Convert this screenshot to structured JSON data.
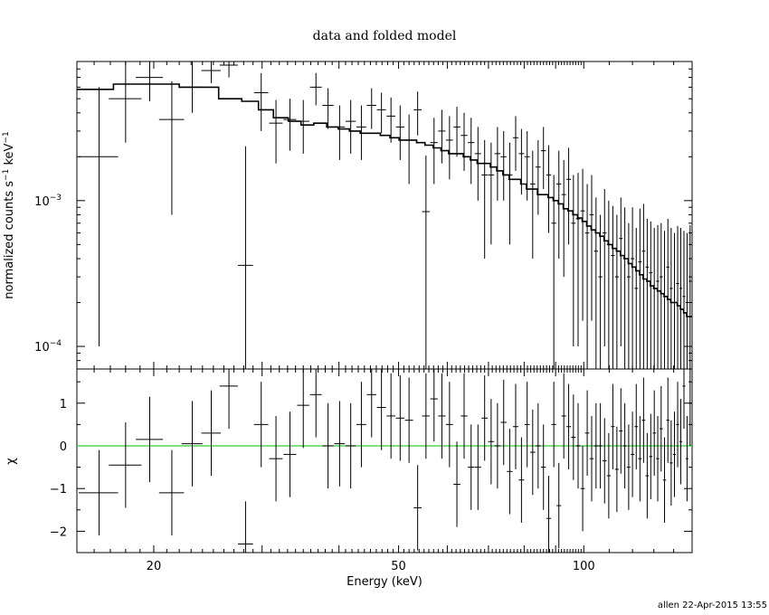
{
  "chart_data": {
    "type": "scatter",
    "title": "data and folded model",
    "xlabel": "Energy (keV)",
    "x_scale": "log",
    "xlim": [
      15,
      150
    ],
    "x_ticks": [
      {
        "value": 20,
        "label": "20"
      },
      {
        "value": 50,
        "label": "50"
      },
      {
        "value": 100,
        "label": "100"
      }
    ],
    "footer": "allen 22-Apr-2015 13:55",
    "top": {
      "ylabel_text": "normalized counts s",
      "ylabel_sup1": "−1",
      "ylabel_mid": " keV",
      "ylabel_sup2": "−1",
      "y_scale": "log",
      "ylim": [
        7e-05,
        0.009
      ],
      "y_ticks": [
        {
          "value": 0.001,
          "label_base": "10",
          "label_exp": "−3"
        },
        {
          "value": 0.0001,
          "label_base": "10",
          "label_exp": "−4"
        }
      ],
      "series": [
        {
          "x": [
            16.3,
            18.0,
            19.7,
            21.4,
            23.1,
            24.8,
            26.5,
            28.2,
            29.9,
            31.6,
            33.3,
            35.0,
            36.7,
            38.4,
            40.1,
            41.8,
            43.5,
            45.2,
            46.9,
            48.6,
            50.3,
            52.0,
            53.7,
            55.4,
            57.1,
            58.8,
            60.5,
            62.2,
            63.9,
            65.6,
            67.3,
            69.0,
            70.7,
            72.4,
            74.1,
            75.8,
            77.5,
            79.2,
            80.9,
            82.6,
            84.3,
            86.0,
            87.7,
            89.4,
            91.1,
            92.8,
            94.5,
            96.2,
            97.9,
            99.6,
            101.3,
            103.0,
            104.7,
            106.4,
            108.1,
            109.8,
            111.5,
            113.2,
            114.9,
            116.6,
            118.3,
            120.0,
            121.7,
            123.4,
            125.1,
            126.8,
            128.5,
            130.2,
            131.9,
            133.6,
            135.3,
            137.0,
            138.7,
            140.4,
            142.1,
            143.8,
            145.5,
            147.2,
            148.9
          ],
          "xerr": [
            1.2,
            1.1,
            1.0,
            1.0,
            0.9,
            0.9,
            0.9,
            0.8,
            0.8,
            0.8,
            0.8,
            0.8,
            0.8,
            0.8,
            0.8,
            0.8,
            0.8,
            0.8,
            0.8,
            0.8,
            0.8,
            0.8,
            0.8,
            0.8,
            0.8,
            0.8,
            0.8,
            0.8,
            0.8,
            0.8,
            0.8,
            0.8,
            0.8,
            0.8,
            0.8,
            0.8,
            0.8,
            0.8,
            0.8,
            0.8,
            0.8,
            0.8,
            0.8,
            0.8,
            0.8,
            0.8,
            0.8,
            0.8,
            0.8,
            0.8,
            0.8,
            0.8,
            0.8,
            0.8,
            0.8,
            0.8,
            0.8,
            0.8,
            0.8,
            0.8,
            0.8,
            0.8,
            0.8,
            0.8,
            0.8,
            0.8,
            0.8,
            0.8,
            0.8,
            0.8,
            0.8,
            0.8,
            0.8,
            0.8,
            0.8,
            0.8,
            0.8,
            0.8,
            0.8
          ],
          "y": [
            0.002,
            0.005,
            0.007,
            0.0036,
            0.006,
            0.0078,
            0.0085,
            0.00036,
            0.0055,
            0.0034,
            0.0036,
            0.0035,
            0.006,
            0.0045,
            0.0032,
            0.0035,
            0.0032,
            0.0045,
            0.0042,
            0.0038,
            0.0032,
            0.0026,
            0.0042,
            0.00084,
            0.0025,
            0.003,
            0.0026,
            0.0032,
            0.0028,
            0.0025,
            0.0021,
            0.0015,
            0.0015,
            0.0021,
            0.002,
            0.0015,
            0.0027,
            0.0021,
            0.002,
            0.0013,
            0.0017,
            0.0022,
            0.0015,
            0.0007,
            0.0013,
            0.0011,
            0.0014,
            0.0007,
            0.00075,
            0.00085,
            0.0006,
            0.0008,
            0.00045,
            0.0003,
            0.0006,
            0.0005,
            0.00042,
            0.0003,
            0.00055,
            0.0004,
            0.0003,
            0.0004,
            0.00025,
            0.00038,
            0.00045,
            0.00035,
            0.00032,
            0.00025,
            0.00028,
            0.0003,
            0.00022,
            0.00035,
            0.00025,
            0.0002,
            0.00027,
            0.00025,
            0.00022,
            0.0002,
            0.00028
          ],
          "yerr_lo": [
            0.0019,
            0.0025,
            0.0022,
            0.0028,
            0.002,
            0.0014,
            0.0015,
            0.00036,
            0.0025,
            0.0016,
            0.0014,
            0.0014,
            0.0015,
            0.0014,
            0.0013,
            0.0014,
            0.0013,
            0.0014,
            0.0013,
            0.0013,
            0.0013,
            0.0013,
            0.0014,
            0.00084,
            0.0012,
            0.0012,
            0.0012,
            0.0012,
            0.0012,
            0.0012,
            0.0011,
            0.0011,
            0.001,
            0.0011,
            0.001,
            0.001,
            0.0011,
            0.001,
            0.001,
            0.0009,
            0.0009,
            0.001,
            0.0009,
            0.0007,
            0.0009,
            0.0008,
            0.0009,
            0.0006,
            0.00065,
            0.0007,
            0.00055,
            0.00065,
            0.0004,
            0.00028,
            0.0005,
            0.00045,
            0.00038,
            0.00028,
            0.00045,
            0.00035,
            0.00028,
            0.00035,
            0.00023,
            0.00032,
            0.00038,
            0.0003,
            0.00028,
            0.00023,
            0.00025,
            0.00026,
            0.0002,
            0.0003,
            0.00022,
            0.00018,
            0.00023,
            0.00022,
            0.0002,
            0.00018,
            0.00023
          ],
          "yerr_hi": [
            0.004,
            0.004,
            0.003,
            0.003,
            0.003,
            0.002,
            0.002,
            0.002,
            0.002,
            0.0015,
            0.0014,
            0.0014,
            0.0015,
            0.0014,
            0.0013,
            0.0014,
            0.0013,
            0.0014,
            0.0013,
            0.0013,
            0.0013,
            0.0013,
            0.0014,
            0.0012,
            0.0012,
            0.0012,
            0.0012,
            0.0012,
            0.0012,
            0.0012,
            0.0011,
            0.0011,
            0.001,
            0.0011,
            0.001,
            0.001,
            0.0011,
            0.001,
            0.001,
            0.0009,
            0.0009,
            0.001,
            0.0009,
            0.0008,
            0.0009,
            0.0008,
            0.0009,
            0.0008,
            0.0008,
            0.0008,
            0.0007,
            0.0007,
            0.0006,
            0.0005,
            0.0006,
            0.0005,
            0.0005,
            0.0005,
            0.0005,
            0.0005,
            0.0004,
            0.0005,
            0.0004,
            0.0005,
            0.0005,
            0.0004,
            0.0004,
            0.0004,
            0.0004,
            0.0004,
            0.0004,
            0.0004,
            0.0004,
            0.0004,
            0.0004,
            0.0004,
            0.0004,
            0.0004,
            0.0004
          ]
        }
      ],
      "model_step": {
        "edges": [
          15,
          17.2,
          22,
          25.5,
          27.8,
          29.6,
          31.3,
          33.1,
          34.7,
          36.4,
          38.2,
          39.9,
          41.6,
          43.3,
          45.0,
          46.7,
          48.4,
          50.1,
          51.8,
          53.5,
          55.2,
          56.9,
          58.6,
          60.3,
          62.0,
          63.7,
          65.4,
          67.1,
          68.8,
          70.5,
          72.2,
          73.9,
          75.6,
          77.3,
          79.0,
          80.7,
          82.4,
          84.1,
          85.8,
          87.5,
          89.2,
          90.9,
          92.6,
          94.3,
          96.0,
          97.7,
          99.4,
          101.1,
          102.8,
          104.5,
          106.2,
          107.9,
          109.6,
          111.3,
          113.0,
          114.7,
          116.4,
          118.1,
          119.8,
          121.5,
          123.2,
          124.9,
          126.6,
          128.3,
          130.0,
          131.7,
          133.4,
          135.1,
          136.8,
          138.5,
          140.2,
          141.9,
          143.6,
          145.3,
          147.0,
          148.7,
          150
        ],
        "values": [
          0.0058,
          0.0063,
          0.006,
          0.005,
          0.0048,
          0.0042,
          0.0037,
          0.0035,
          0.0033,
          0.0034,
          0.0032,
          0.0031,
          0.003,
          0.0029,
          0.0029,
          0.0028,
          0.0027,
          0.0026,
          0.0026,
          0.0025,
          0.0024,
          0.0023,
          0.0022,
          0.0021,
          0.0021,
          0.002,
          0.0019,
          0.0018,
          0.0018,
          0.0017,
          0.0016,
          0.0015,
          0.0014,
          0.0014,
          0.0013,
          0.0012,
          0.0012,
          0.0011,
          0.0011,
          0.00105,
          0.001,
          0.00095,
          0.00088,
          0.00085,
          0.0008,
          0.00076,
          0.00072,
          0.00067,
          0.00063,
          0.0006,
          0.00057,
          0.00053,
          0.0005,
          0.00047,
          0.00045,
          0.00042,
          0.0004,
          0.00037,
          0.00035,
          0.00033,
          0.00031,
          0.00029,
          0.00028,
          0.00026,
          0.00025,
          0.00024,
          0.00023,
          0.00022,
          0.00021,
          0.0002,
          0.0002,
          0.00019,
          0.00018,
          0.00017,
          0.00016,
          0.00016
        ]
      }
    },
    "bottom": {
      "ylabel": "χ",
      "ylim": [
        -2.5,
        1.8
      ],
      "y_ticks": [
        {
          "value": 1,
          "label": "1"
        },
        {
          "value": 0,
          "label": "0"
        },
        {
          "value": -1,
          "label": "−1"
        },
        {
          "value": -2,
          "label": "−2"
        }
      ],
      "zero_line_color": "#33cc33",
      "series": [
        {
          "x": [
            16.3,
            18.0,
            19.7,
            21.4,
            23.1,
            24.8,
            26.5,
            28.2,
            29.9,
            31.6,
            33.3,
            35.0,
            36.7,
            38.4,
            40.1,
            41.8,
            43.5,
            45.2,
            46.9,
            48.6,
            50.3,
            52.0,
            53.7,
            55.4,
            57.1,
            58.8,
            60.5,
            62.2,
            63.9,
            65.6,
            67.3,
            69.0,
            70.7,
            72.4,
            74.1,
            75.8,
            77.5,
            79.2,
            80.9,
            82.6,
            84.3,
            86.0,
            87.7,
            89.4,
            91.1,
            92.8,
            94.5,
            96.2,
            97.9,
            99.6,
            101.3,
            103.0,
            104.7,
            106.4,
            108.1,
            109.8,
            111.5,
            113.2,
            114.9,
            116.6,
            118.3,
            120.0,
            121.7,
            123.4,
            125.1,
            126.8,
            128.5,
            130.2,
            131.9,
            133.6,
            135.3,
            137.0,
            138.7,
            140.4,
            142.1,
            143.8,
            145.5,
            147.2,
            148.9
          ],
          "xerr": [
            1.2,
            1.1,
            1.0,
            1.0,
            0.9,
            0.9,
            0.9,
            0.8,
            0.8,
            0.8,
            0.8,
            0.8,
            0.8,
            0.8,
            0.8,
            0.8,
            0.8,
            0.8,
            0.8,
            0.8,
            0.8,
            0.8,
            0.8,
            0.8,
            0.8,
            0.8,
            0.8,
            0.8,
            0.8,
            0.8,
            0.8,
            0.8,
            0.8,
            0.8,
            0.8,
            0.8,
            0.8,
            0.8,
            0.8,
            0.8,
            0.8,
            0.8,
            0.8,
            0.8,
            0.8,
            0.8,
            0.8,
            0.8,
            0.8,
            0.8,
            0.8,
            0.8,
            0.8,
            0.8,
            0.8,
            0.8,
            0.8,
            0.8,
            0.8,
            0.8,
            0.8,
            0.8,
            0.8,
            0.8,
            0.8,
            0.8,
            0.8,
            0.8,
            0.8,
            0.8,
            0.8,
            0.8,
            0.8,
            0.8,
            0.8,
            0.8,
            0.8,
            0.8,
            0.8
          ],
          "y": [
            -1.1,
            -0.45,
            0.15,
            -1.1,
            0.05,
            0.3,
            1.4,
            -2.3,
            0.5,
            -0.3,
            -0.2,
            0.95,
            1.2,
            0.0,
            0.05,
            0.0,
            0.5,
            1.2,
            0.9,
            0.7,
            0.65,
            0.6,
            -1.45,
            0.7,
            1.1,
            0.7,
            0.5,
            -0.9,
            0.7,
            -0.5,
            -0.5,
            0.65,
            0.1,
            0.0,
            0.55,
            -0.6,
            0.45,
            -0.8,
            0.5,
            -0.15,
            0.0,
            -0.5,
            -1.7,
            0.5,
            -1.4,
            0.7,
            0.45,
            0.2,
            0.0,
            -1.0,
            0.3,
            -0.3,
            0.0,
            0.0,
            -0.35,
            -0.7,
            0.45,
            -0.55,
            0.35,
            0.0,
            -0.5,
            -0.2,
            0.45,
            -0.3,
            0.6,
            -0.7,
            -0.25,
            0.3,
            -0.3,
            0.4,
            -0.8,
            0.6,
            -0.4,
            -0.2,
            0.5,
            0.1,
            1.4,
            -0.3,
            1.0
          ],
          "yerr_lo": [
            1.0,
            1.0,
            1.0,
            1.0,
            1.0,
            1.0,
            1.0,
            1.0,
            1.0,
            1.0,
            1.0,
            1.0,
            1.0,
            1.0,
            1.0,
            1.0,
            1.0,
            1.0,
            1.0,
            1.0,
            1.0,
            1.0,
            1.0,
            1.0,
            1.0,
            1.0,
            1.0,
            1.0,
            1.0,
            1.0,
            1.0,
            1.0,
            1.0,
            1.0,
            1.0,
            1.0,
            1.0,
            1.0,
            1.0,
            1.0,
            1.0,
            1.0,
            1.0,
            1.0,
            1.0,
            1.0,
            1.0,
            1.0,
            1.0,
            1.0,
            1.0,
            1.0,
            1.0,
            1.0,
            1.0,
            1.0,
            1.0,
            1.0,
            1.0,
            1.0,
            1.0,
            1.0,
            1.0,
            1.0,
            1.0,
            1.0,
            1.0,
            1.0,
            1.0,
            1.0,
            1.0,
            1.0,
            1.0,
            1.0,
            1.0,
            1.0,
            1.0,
            1.0,
            1.0
          ],
          "yerr_hi": [
            1.0,
            1.0,
            1.0,
            1.0,
            1.0,
            1.0,
            1.0,
            1.0,
            1.0,
            1.0,
            1.0,
            1.0,
            1.0,
            1.0,
            1.0,
            1.0,
            1.0,
            1.0,
            1.0,
            1.0,
            1.0,
            1.0,
            1.0,
            1.0,
            1.0,
            1.0,
            1.0,
            1.0,
            1.0,
            1.0,
            1.0,
            1.0,
            1.0,
            1.0,
            1.0,
            1.0,
            1.0,
            1.0,
            1.0,
            1.0,
            1.0,
            1.0,
            1.0,
            1.0,
            1.0,
            1.0,
            1.0,
            1.0,
            1.0,
            1.0,
            1.0,
            1.0,
            1.0,
            1.0,
            1.0,
            1.0,
            1.0,
            1.0,
            1.0,
            1.0,
            1.0,
            1.0,
            1.0,
            1.0,
            1.0,
            1.0,
            1.0,
            1.0,
            1.0,
            1.0,
            1.0,
            1.0,
            1.0,
            1.0,
            1.0,
            1.0,
            1.0,
            1.0,
            1.0
          ]
        }
      ]
    }
  }
}
